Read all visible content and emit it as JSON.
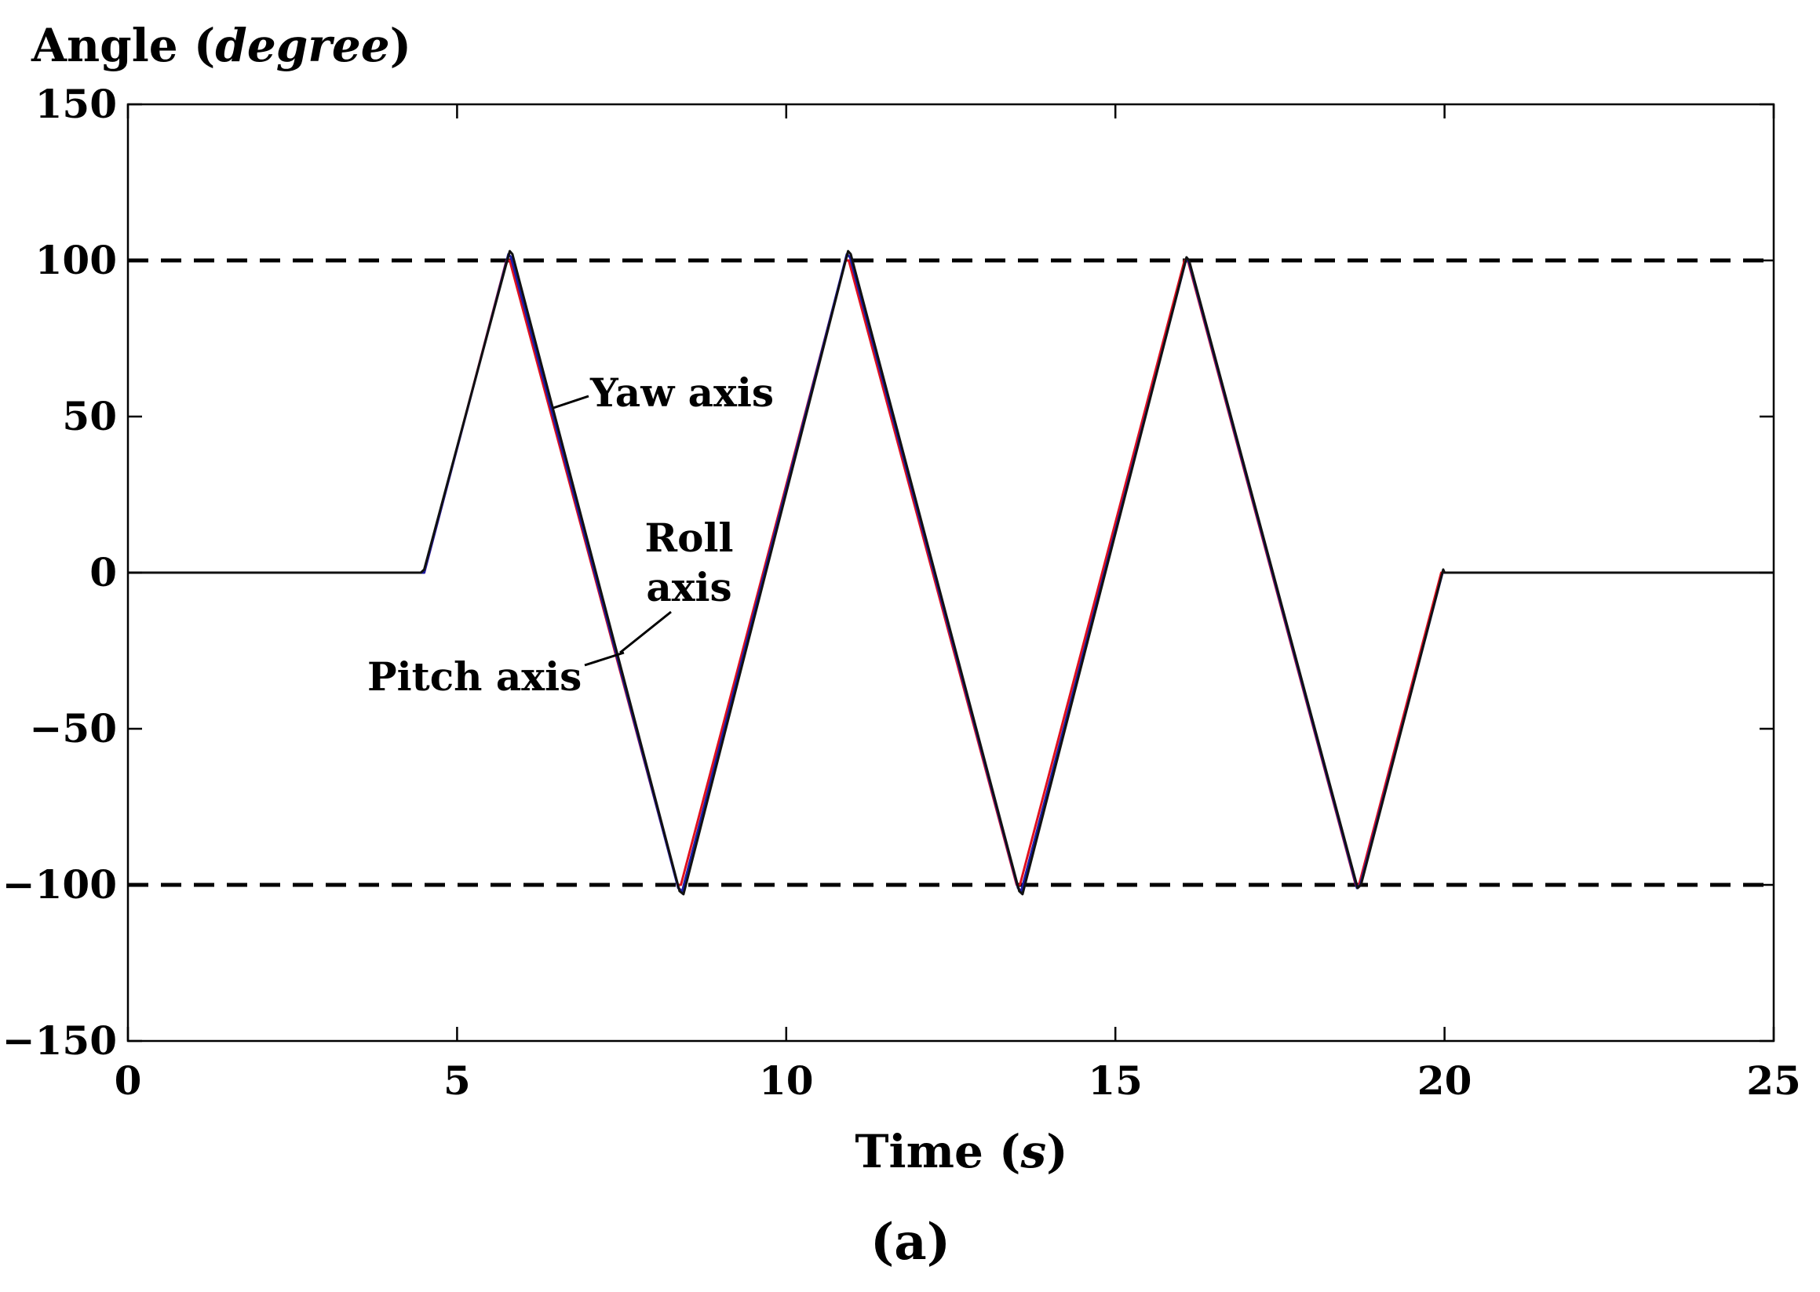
{
  "chart_data": {
    "type": "line",
    "ylabel": {
      "prefix": "Angle (",
      "unit": "degree",
      "suffix": ")"
    },
    "xlabel": {
      "prefix": "Time (",
      "unit": "s",
      "suffix": ")"
    },
    "panel_label": "(a)",
    "xlim": [
      0,
      25
    ],
    "ylim": [
      -150,
      150
    ],
    "x_ticks": [
      0,
      5,
      10,
      15,
      20,
      25
    ],
    "y_ticks": [
      150,
      100,
      50,
      0,
      -50,
      -100,
      -150
    ],
    "y_tick_labels": [
      "150",
      "100",
      "50",
      "0",
      "−50",
      "−100",
      "−150"
    ],
    "reference_lines": [
      {
        "y": 100,
        "style": "dashed",
        "color": "#000000"
      },
      {
        "y": -100,
        "style": "dashed",
        "color": "#000000"
      }
    ],
    "series": [
      {
        "name": "Yaw axis",
        "color": "#e0101e",
        "x": [
          0,
          4.45,
          4.5,
          5.75,
          5.8,
          8.35,
          8.4,
          10.9,
          10.95,
          13.5,
          13.55,
          16.05,
          16.1,
          18.65,
          18.7,
          19.95,
          20.0,
          25
        ],
        "y": [
          0,
          0,
          0,
          100,
          100,
          -100,
          -100,
          100,
          100,
          -100,
          -100,
          100,
          100,
          -100,
          -100,
          0,
          0,
          0
        ]
      },
      {
        "name": "Pitch axis",
        "color": "#1a1aa6",
        "x": [
          0,
          4.45,
          4.5,
          5.78,
          5.82,
          8.36,
          8.42,
          10.92,
          10.97,
          13.52,
          13.57,
          16.07,
          16.11,
          18.67,
          18.72,
          19.97,
          20.0,
          25
        ],
        "y": [
          0,
          0,
          0,
          102,
          101,
          -101,
          -102,
          102,
          101,
          -101,
          -102,
          100,
          100,
          -101,
          -100,
          0,
          0,
          0
        ]
      },
      {
        "name": "Roll axis",
        "color": "#111111",
        "x": [
          0,
          4.45,
          4.5,
          5.8,
          5.84,
          8.38,
          8.44,
          10.94,
          10.98,
          13.54,
          13.59,
          16.08,
          16.12,
          18.68,
          18.73,
          19.98,
          20.0,
          25
        ],
        "y": [
          0,
          0,
          1,
          103,
          102,
          -102,
          -103,
          103,
          102,
          -102,
          -103,
          101,
          100,
          -101,
          -100,
          1,
          0,
          0
        ]
      }
    ],
    "annotations": [
      {
        "lines": [
          "Yaw axis"
        ],
        "anchor_series": "Yaw axis"
      },
      {
        "lines": [
          "Roll",
          "axis"
        ],
        "anchor_series": "Roll axis"
      },
      {
        "lines": [
          "Pitch axis"
        ],
        "anchor_series": "Pitch axis"
      }
    ]
  }
}
